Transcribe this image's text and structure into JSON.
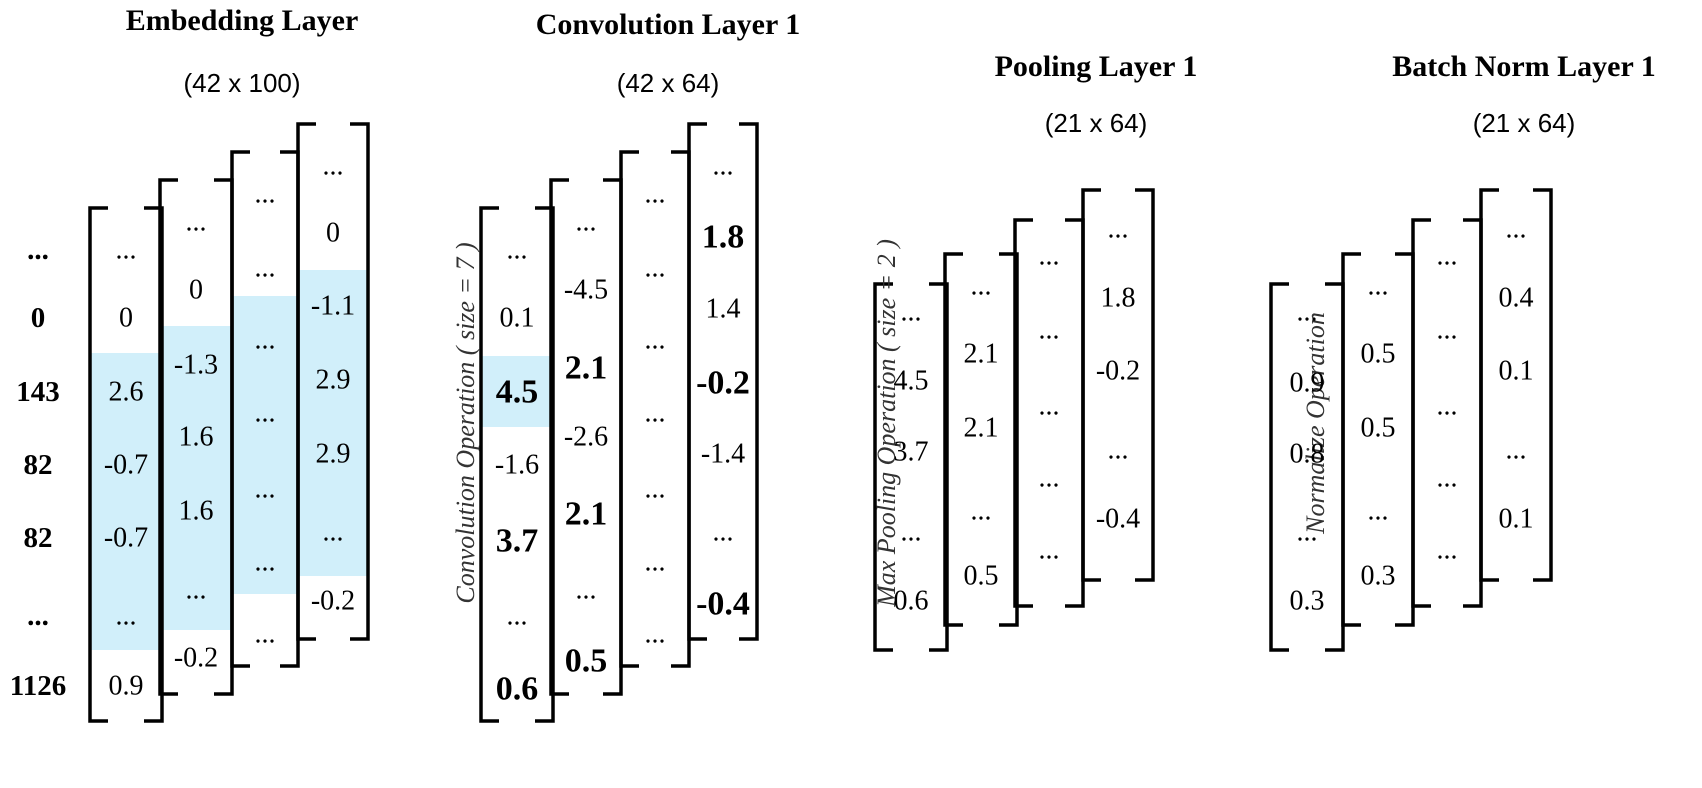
{
  "layers": [
    {
      "title": "Embedding Layer",
      "dims": "(42 x 100)",
      "row_ids": [
        "...",
        "0",
        "143",
        "82",
        "82",
        "...",
        "1126"
      ],
      "columns": [
        [
          "...",
          "0",
          "2.6",
          "-0.7",
          "-0.7",
          "...",
          "0.9"
        ],
        [
          "...",
          "0",
          "-1.3",
          "1.6",
          "1.6",
          "...",
          "-0.2"
        ],
        [
          "...",
          "...",
          "...",
          "...",
          "...",
          "...",
          "..."
        ],
        [
          "...",
          "0",
          "-1.1",
          "2.9",
          "2.9",
          "...",
          "-0.2"
        ]
      ]
    },
    {
      "title": "Convolution Layer 1",
      "dims": "(42 x 64)",
      "columns": [
        [
          "...",
          "0.1",
          "4.5",
          "-1.6",
          "3.7",
          "...",
          "0.6"
        ],
        [
          "...",
          "-4.5",
          "2.1",
          "-2.6",
          "2.1",
          "...",
          "0.5"
        ],
        [
          "...",
          "...",
          "...",
          "...",
          "...",
          "...",
          "..."
        ],
        [
          "...",
          "1.8",
          "1.4",
          "-0.2",
          "-1.4",
          "...",
          "-0.4"
        ]
      ]
    },
    {
      "title": "Pooling Layer 1",
      "dims": "(21 x 64)",
      "columns": [
        [
          "...",
          "4.5",
          "3.7",
          "...",
          "0.6"
        ],
        [
          "...",
          "2.1",
          "2.1",
          "...",
          "0.5"
        ],
        [
          "...",
          "...",
          "...",
          "...",
          "..."
        ],
        [
          "...",
          "1.8",
          "-0.2",
          "...",
          "-0.4"
        ]
      ]
    },
    {
      "title": "Batch Norm Layer 1",
      "dims": "(21 x 64)",
      "columns": [
        [
          "...",
          "0.9",
          "0.8",
          "...",
          "0.3"
        ],
        [
          "...",
          "0.5",
          "0.5",
          "...",
          "0.3"
        ],
        [
          "...",
          "...",
          "...",
          "...",
          "..."
        ],
        [
          "...",
          "0.4",
          "0.1",
          "...",
          "0.1"
        ]
      ]
    }
  ],
  "operations": [
    "Convolution Operation ( size = 7 )",
    "Max Pooling Operation ( size = 2 )",
    "Normalize Operation"
  ],
  "colors": {
    "highlight": "#d1effa",
    "stroke": "#000000",
    "text": "#000000",
    "operation_text": "#333333"
  }
}
